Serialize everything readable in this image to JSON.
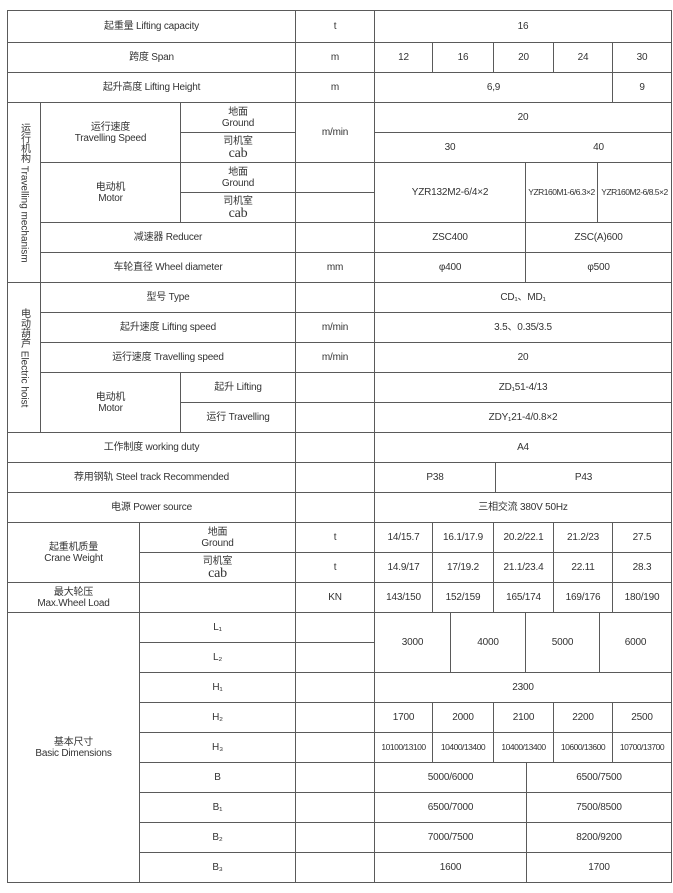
{
  "capacity": {
    "label": "起重量 Lifting capacity",
    "unit": "t",
    "value": "16"
  },
  "span": {
    "label": "跨度 Span",
    "unit": "m",
    "values": [
      "12",
      "16",
      "20",
      "24",
      "30"
    ]
  },
  "lifting_height": {
    "label": "起升高度 Lifting Height",
    "unit": "m",
    "values": [
      "6,9",
      "9"
    ]
  },
  "travelling_mechanism": {
    "section_label": "运行机构 Travelling mechanism",
    "speed": {
      "label_cn": "运行速度",
      "label_en": "Travelling Speed",
      "ground_cn": "地面",
      "ground_en": "Ground",
      "cab_cn": "司机室",
      "cab_en": "cab",
      "unit": "m/min",
      "ground_value": "20",
      "cab_values": [
        "30",
        "40"
      ]
    },
    "motor": {
      "label_cn": "电动机",
      "label_en": "Motor",
      "ground_cn": "地面",
      "ground_en": "Ground",
      "cab_cn": "司机室",
      "cab_en": "cab",
      "values": [
        "YZR132M2-6/4×2",
        "YZR160M1-6/6.3×2",
        "YZR160M2-6/8.5×2"
      ]
    },
    "reducer": {
      "label": "减速器 Reducer",
      "values": [
        "ZSC400",
        "ZSC(A)600"
      ]
    },
    "wheel": {
      "label": "车轮直径 Wheel diameter",
      "unit": "mm",
      "values": [
        "φ400",
        "φ500"
      ]
    }
  },
  "electric_hoist": {
    "section_label": "电动葫芦 Electric hoist",
    "type": {
      "label": "型号 Type",
      "value": "CD₁、MD₁"
    },
    "lifting_speed": {
      "label": "起升速度 Lifting speed",
      "unit": "m/min",
      "value": "3.5、0.35/3.5"
    },
    "travelling_speed": {
      "label": "运行速度 Travelling speed",
      "unit": "m/min",
      "value": "20"
    },
    "motor": {
      "label_cn": "电动机",
      "label_en": "Motor",
      "lifting_label": "起升 Lifting",
      "lifting_value": "ZD₁51-4/13",
      "travelling_label": "运行 Travelling",
      "travelling_value": "ZDY₁21-4/0.8×2"
    }
  },
  "working_duty": {
    "label": "工作制度 working duty",
    "value": "A4"
  },
  "steel_track": {
    "label": "荐用钢轨 Steel track Recommended",
    "values": [
      "P38",
      "P43"
    ]
  },
  "power_source": {
    "label": "电源 Power source",
    "value": "三相交流   380V  50Hz"
  },
  "crane_weight": {
    "label_cn": "起重机质量",
    "label_en": "Crane Weight",
    "ground_cn": "地面",
    "ground_en": "Ground",
    "ground_unit": "t",
    "ground_values": [
      "14/15.7",
      "16.1/17.9",
      "20.2/22.1",
      "21.2/23",
      "27.5"
    ],
    "cab_cn": "司机室",
    "cab_en": "cab",
    "cab_unit": "t",
    "cab_values": [
      "14.9/17",
      "17/19.2",
      "21.1/23.4",
      "22.11",
      "28.3"
    ]
  },
  "max_wheel_load": {
    "label_cn": "最大轮压",
    "label_en": "Max.Wheel Load",
    "unit": "KN",
    "values": [
      "143/150",
      "152/159",
      "165/174",
      "169/176",
      "180/190"
    ]
  },
  "basic_dimensions": {
    "label_cn": "基本尺寸",
    "label_en": "Basic  Dimensions",
    "L1": "L₁",
    "L2": "L₂",
    "L_values": [
      "3000",
      "4000",
      "5000",
      "6000"
    ],
    "H1": "H₁",
    "H1_value": "2300",
    "H2": "H₂",
    "H2_values": [
      "1700",
      "2000",
      "2100",
      "2200",
      "2500"
    ],
    "H3": "H₃",
    "H3_values": [
      "10100/13100",
      "10400/13400",
      "10400/13400",
      "10600/13600",
      "10700/13700"
    ],
    "B": "B",
    "B_values": [
      "5000/6000",
      "6500/7500"
    ],
    "B1": "B₁",
    "B1_values": [
      "6500/7000",
      "7500/8500"
    ],
    "B2": "B₂",
    "B2_values": [
      "7000/7500",
      "8200/9200"
    ],
    "B3": "B₃",
    "B3_values": [
      "1600",
      "1700"
    ]
  }
}
